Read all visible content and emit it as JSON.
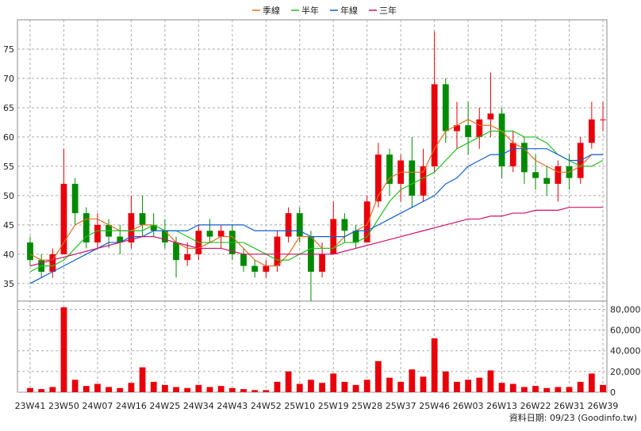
{
  "chart_data": {
    "type": "candlestick",
    "categories": [
      "23W41",
      null,
      null,
      "23W50",
      null,
      null,
      "24W07",
      null,
      null,
      "24W16",
      null,
      null,
      "24W25",
      null,
      null,
      "24W34",
      null,
      null,
      "24W43",
      null,
      null,
      "24W52",
      null,
      null,
      "25W10",
      null,
      null,
      "25W19",
      null,
      null,
      "25W28",
      null,
      null,
      "25W37",
      null,
      null,
      "25W46",
      null,
      null,
      "26W03",
      null,
      null,
      "26W13",
      null,
      null,
      "26W22",
      null,
      null,
      "26W31",
      null,
      null,
      "26W39"
    ],
    "open": [
      42,
      39,
      37,
      40,
      52,
      47,
      42,
      45,
      43,
      42,
      47,
      45,
      44,
      42,
      39,
      40,
      44,
      43,
      44,
      40,
      38,
      37,
      38,
      43,
      47,
      43,
      37,
      40,
      46,
      44,
      42,
      49,
      57,
      52,
      56,
      50,
      55,
      69,
      61,
      62,
      60,
      63,
      64,
      55,
      59,
      54,
      53,
      52,
      55,
      53,
      59,
      63
    ],
    "high": [
      43,
      40,
      41,
      58,
      53,
      48,
      47,
      46,
      45,
      50,
      50,
      47,
      46,
      43,
      42,
      45,
      46,
      45,
      45,
      41,
      39,
      39,
      44,
      48,
      48,
      44,
      42,
      49,
      47,
      45,
      50,
      59,
      58,
      57,
      60,
      58,
      78,
      70,
      66,
      66,
      65,
      71,
      65,
      61,
      60,
      57,
      55,
      56,
      57,
      60,
      66,
      66
    ],
    "low": [
      38,
      36,
      36,
      40,
      45,
      41,
      41,
      41,
      40,
      41,
      43,
      43,
      41,
      36,
      38,
      39,
      42,
      41,
      39,
      37,
      36,
      36,
      37,
      42,
      42,
      32,
      36,
      40,
      42,
      41,
      42,
      48,
      50,
      49,
      48,
      49,
      54,
      59,
      58,
      57,
      58,
      60,
      53,
      54,
      52,
      51,
      50,
      49,
      51,
      52,
      58,
      61
    ],
    "close": [
      39,
      37,
      40,
      52,
      47,
      42,
      45,
      43,
      42,
      47,
      45,
      44,
      42,
      39,
      40,
      44,
      43,
      44,
      40,
      38,
      37,
      38,
      43,
      47,
      43,
      37,
      40,
      46,
      44,
      42,
      49,
      57,
      52,
      56,
      50,
      55,
      69,
      61,
      62,
      60,
      63,
      64,
      55,
      59,
      54,
      53,
      52,
      55,
      53,
      59,
      63,
      63
    ],
    "up_color": "#e8000b",
    "down_color": "#008a00",
    "series": [
      {
        "name": "季線",
        "color": "#e07020",
        "values": [
          40,
          39,
          39,
          42,
          45,
          46,
          46,
          45,
          44,
          44,
          45,
          45,
          44,
          42,
          41,
          41,
          42,
          43,
          43,
          41,
          39,
          38,
          38,
          40,
          43,
          43,
          41,
          41,
          43,
          44,
          45,
          50,
          53,
          54,
          54,
          54,
          58,
          61,
          62,
          63,
          62,
          62,
          61,
          59,
          58,
          56,
          55,
          54,
          54,
          55,
          57,
          57
        ]
      },
      {
        "name": "半年",
        "color": "#20c020",
        "values": [
          37,
          38,
          38,
          39,
          41,
          43,
          44,
          44,
          44,
          44,
          44,
          45,
          44,
          44,
          43,
          42,
          42,
          42,
          42,
          42,
          41,
          40,
          39,
          39,
          40,
          41,
          41,
          41,
          42,
          42,
          43,
          46,
          49,
          51,
          52,
          53,
          54,
          56,
          58,
          59,
          60,
          61,
          61,
          61,
          60,
          60,
          59,
          57,
          56,
          55,
          55,
          56
        ]
      },
      {
        "name": "年線",
        "color": "#1060d0",
        "values": [
          35,
          36,
          37,
          38,
          39,
          40,
          41,
          42,
          42,
          43,
          43,
          44,
          44,
          44,
          44,
          45,
          45,
          45,
          45,
          45,
          44,
          44,
          44,
          44,
          44,
          43,
          43,
          43,
          43,
          44,
          44,
          45,
          46,
          47,
          48,
          49,
          50,
          52,
          53,
          55,
          56,
          57,
          57,
          58,
          58,
          58,
          58,
          57,
          56,
          56,
          57,
          57
        ]
      },
      {
        "name": "三年",
        "color": "#d0106a",
        "values": [
          38,
          38.5,
          39,
          39.5,
          40,
          40.5,
          41,
          41.5,
          42,
          42.5,
          43,
          43,
          42.5,
          42,
          41.5,
          41,
          41,
          41,
          40.5,
          40,
          40,
          40,
          40,
          40,
          40,
          40,
          40,
          40,
          40.5,
          41,
          41.5,
          42,
          42.5,
          43,
          43.5,
          44,
          44.5,
          45,
          45.5,
          46,
          46,
          46.5,
          46.5,
          47,
          47,
          47.5,
          47.5,
          47.5,
          48,
          48,
          48,
          48
        ]
      }
    ],
    "ylim": [
      32,
      80
    ],
    "yticks": [
      35,
      40,
      45,
      50,
      55,
      60,
      65,
      70,
      75
    ],
    "volume": [
      4000,
      3000,
      5000,
      82000,
      12000,
      6000,
      8000,
      5000,
      4000,
      9000,
      24000,
      10000,
      7000,
      5000,
      4000,
      7000,
      5000,
      6000,
      4000,
      3000,
      2000,
      2000,
      10000,
      20000,
      8000,
      12000,
      9000,
      18000,
      10000,
      7000,
      12000,
      30000,
      14000,
      10000,
      22000,
      15000,
      52000,
      20000,
      10000,
      12000,
      14000,
      21000,
      9000,
      8000,
      5000,
      6000,
      4000,
      5000,
      5000,
      10000,
      18000,
      7000
    ],
    "volume_color": "#e8000b",
    "y2lim": [
      0,
      88000
    ],
    "y2ticks": [
      0,
      {
        "value": 20000,
        "label": "20,000"
      },
      {
        "value": 40000,
        "label": "40,000"
      },
      {
        "value": 60000,
        "label": "60,000"
      },
      {
        "value": 80000,
        "label": "80,000"
      }
    ],
    "grid": true,
    "footer": "資料日期: 09/23 (Goodinfo.tw)"
  }
}
